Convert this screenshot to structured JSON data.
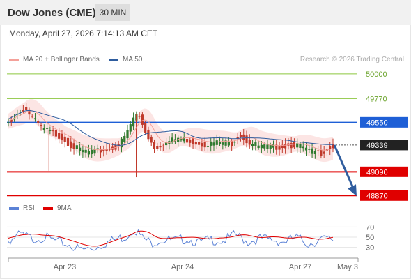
{
  "header": {
    "title": "Dow Jones (CME)",
    "interval": "30 MIN"
  },
  "timestamp": "Monday, April 27, 2026 7:14:13 AM CET",
  "legend": {
    "ma20": {
      "label": "MA 20 + Bollinger Bands",
      "color": "#f4a19a"
    },
    "ma50": {
      "label": "MA 50",
      "color": "#2e5c9e"
    },
    "rsi": {
      "label": "RSI",
      "color": "#5b82d6"
    },
    "rsi_ma": {
      "label": "9MA",
      "color": "#e00000"
    }
  },
  "credit": "Research © 2026 Trading Central",
  "chart_data": [
    {
      "type": "candlestick",
      "ylim": [
        48820,
        50090
      ],
      "levels": [
        {
          "value": 50000,
          "label": "50000",
          "kind": "resistance",
          "color": "#8cc63f"
        },
        {
          "value": 49770,
          "label": "49770",
          "kind": "resistance",
          "color": "#8cc63f"
        },
        {
          "value": 49550,
          "label": "49550",
          "kind": "pivot",
          "color": "#1e5fd6"
        },
        {
          "value": 49339,
          "label": "49339",
          "kind": "last",
          "color": "#222222"
        },
        {
          "value": 49090,
          "label": "49090",
          "kind": "support",
          "color": "#e00000"
        },
        {
          "value": 48870,
          "label": "48870",
          "kind": "support",
          "color": "#e00000"
        }
      ],
      "price_points": [
        [
          0,
          49560
        ],
        [
          4,
          49640
        ],
        [
          8,
          49700
        ],
        [
          12,
          49600
        ],
        [
          16,
          49520
        ],
        [
          20,
          49480
        ],
        [
          26,
          49430
        ],
        [
          30,
          49360
        ],
        [
          36,
          49300
        ],
        [
          42,
          49290
        ],
        [
          48,
          49310
        ],
        [
          54,
          49340
        ],
        [
          58,
          49450
        ],
        [
          62,
          49620
        ],
        [
          64,
          49640
        ],
        [
          68,
          49460
        ],
        [
          72,
          49330
        ],
        [
          78,
          49380
        ],
        [
          84,
          49420
        ],
        [
          90,
          49390
        ],
        [
          96,
          49360
        ],
        [
          104,
          49380
        ],
        [
          110,
          49370
        ],
        [
          114,
          49460
        ],
        [
          118,
          49380
        ],
        [
          124,
          49340
        ],
        [
          130,
          49330
        ],
        [
          138,
          49350
        ],
        [
          142,
          49360
        ],
        [
          148,
          49300
        ],
        [
          154,
          49280
        ],
        [
          158,
          49330
        ],
        [
          160,
          49339
        ]
      ],
      "x_ticks": [
        "Apr 23",
        "Apr 24",
        "Apr 27",
        "May 3"
      ],
      "forecast": {
        "from": 49339,
        "to": 48870
      }
    },
    {
      "type": "line",
      "name": "RSI",
      "ylim": [
        20,
        80
      ],
      "y_ticks": [
        "70",
        "50",
        "30"
      ],
      "rsi_points": [
        [
          0,
          48
        ],
        [
          6,
          60
        ],
        [
          12,
          52
        ],
        [
          18,
          55
        ],
        [
          24,
          46
        ],
        [
          30,
          40
        ],
        [
          36,
          30
        ],
        [
          42,
          34
        ],
        [
          48,
          44
        ],
        [
          54,
          52
        ],
        [
          58,
          56
        ],
        [
          62,
          72
        ],
        [
          66,
          54
        ],
        [
          70,
          44
        ],
        [
          76,
          50
        ],
        [
          82,
          48
        ],
        [
          88,
          52
        ],
        [
          94,
          44
        ],
        [
          100,
          50
        ],
        [
          106,
          48
        ],
        [
          112,
          60
        ],
        [
          118,
          46
        ],
        [
          124,
          52
        ],
        [
          130,
          50
        ],
        [
          136,
          46
        ],
        [
          142,
          54
        ],
        [
          148,
          42
        ],
        [
          154,
          50
        ],
        [
          160,
          51
        ]
      ]
    }
  ]
}
